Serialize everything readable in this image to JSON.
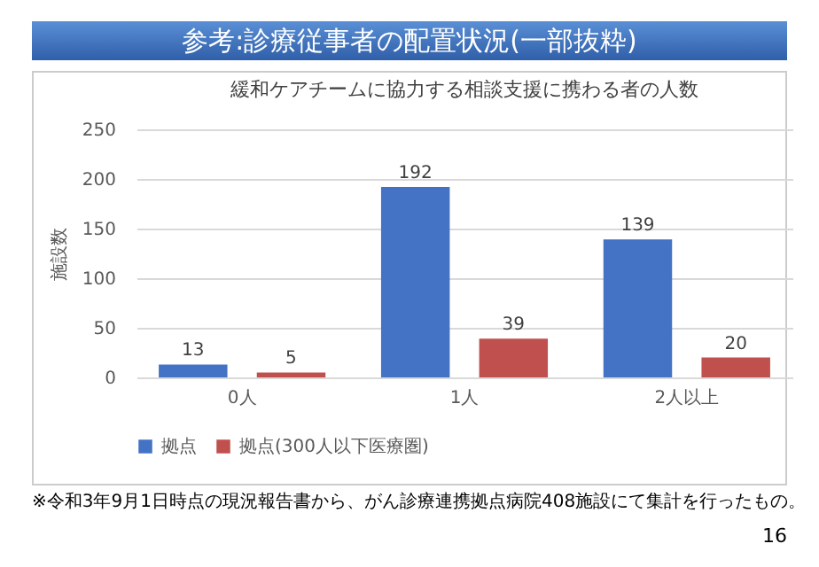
{
  "chart_data": {
    "type": "bar",
    "title": "参考:診療従事者の配置状況(一部抜粋)",
    "subtitle": "緩和ケアチームに協力する相談支援に携わる者の人数",
    "ylabel": "施設数",
    "categories": [
      "0人",
      "1人",
      "2人以上"
    ],
    "series": [
      {
        "name": "拠点",
        "color": "#4472c4",
        "values": [
          13,
          192,
          139
        ]
      },
      {
        "name": "拠点(300人以下医療圏)",
        "color": "#c0504d",
        "values": [
          5,
          39,
          20
        ]
      }
    ],
    "ylim": [
      0,
      250
    ],
    "yticks": [
      0,
      50,
      100,
      150,
      200,
      250
    ],
    "grid": "y",
    "legend": "bottom",
    "data_labels": true,
    "annotations": [
      "※令和3年9月1日時点の現況報告書から、がん診療連携拠点病院408施設にて集計を行ったもの。",
      "16"
    ]
  }
}
